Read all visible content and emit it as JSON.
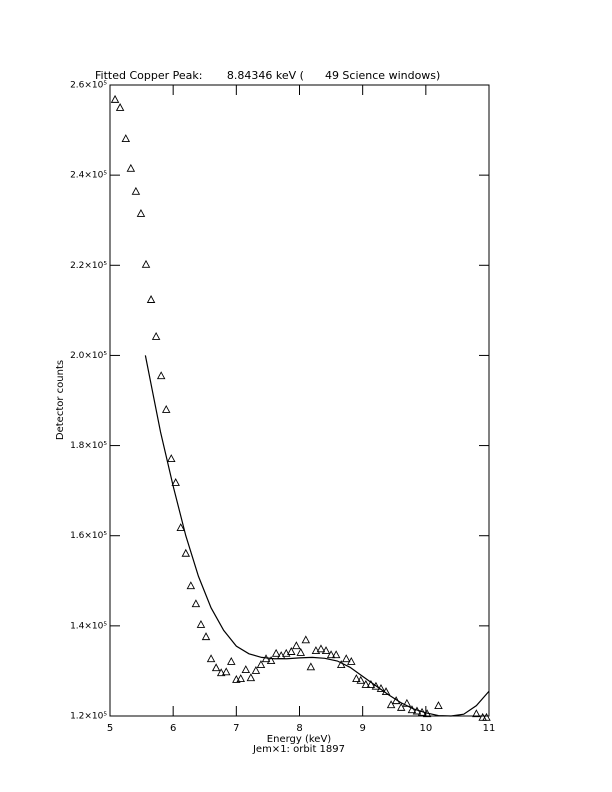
{
  "chart_data": {
    "type": "scatter",
    "title": "Fitted Copper Peak:       8.84346 keV (      49 Science windows)",
    "x_label": "Energy (keV)",
    "y_label": "Detector counts",
    "subtitle": "Jem×1: orbit 1897",
    "xlim": [
      5,
      11
    ],
    "xticks": [
      5,
      6,
      7,
      8,
      9,
      10,
      11
    ],
    "ylim": [
      120000,
      260000
    ],
    "yticks": [
      {
        "value": 120000,
        "label": "1.2×10⁵"
      },
      {
        "value": 140000,
        "label": "1.4×10⁵"
      },
      {
        "value": 160000,
        "label": "1.6×10⁵"
      },
      {
        "value": 180000,
        "label": "1.8×10⁵"
      },
      {
        "value": 200000,
        "label": "2.0×10⁵"
      },
      {
        "value": 220000,
        "label": "2.2×10⁵"
      },
      {
        "value": 240000,
        "label": "2.4×10⁵"
      },
      {
        "value": 260000,
        "label": "2.6×10⁵"
      }
    ],
    "series": [
      {
        "type": "scatter",
        "color": "#000000",
        "x": [
          5.08,
          5.16,
          5.25,
          5.33,
          5.41,
          5.49,
          5.57,
          5.65,
          5.73,
          5.81,
          5.89,
          5.97,
          6.04,
          6.12,
          6.2,
          6.28,
          6.36,
          6.44,
          6.52,
          6.6,
          6.68,
          6.76,
          6.84,
          6.92,
          7.0,
          7.07,
          7.15,
          7.23,
          7.31,
          7.39,
          7.47,
          7.55,
          7.63,
          7.71,
          7.79,
          7.87,
          7.95,
          8.02,
          8.1,
          8.18,
          8.26,
          8.34,
          8.42,
          8.5,
          8.58,
          8.66,
          8.74,
          8.82,
          8.9,
          8.97,
          9.05,
          9.13,
          9.21,
          9.29,
          9.37,
          9.45,
          9.53,
          9.61,
          9.7,
          9.78,
          9.86,
          9.94,
          10.02,
          10.2,
          10.8,
          10.9,
          10.96
        ],
        "values": [
          256700,
          254900,
          248000,
          241400,
          236300,
          231400,
          220100,
          212300,
          204100,
          195400,
          187900,
          177000,
          171700,
          161700,
          156000,
          148800,
          144800,
          140200,
          137500,
          132600,
          130600,
          129500,
          129700,
          132000,
          128000,
          128200,
          130200,
          128400,
          130000,
          131300,
          132600,
          132200,
          133800,
          133300,
          133800,
          134200,
          135500,
          134000,
          136800,
          130800,
          134400,
          134800,
          134400,
          133500,
          133500,
          131300,
          132600,
          132000,
          128200,
          127800,
          126900,
          126900,
          126500,
          126000,
          125300,
          122400,
          123300,
          121800,
          122700,
          121300,
          121000,
          120700,
          120400,
          122200,
          120400,
          119600,
          119600
        ]
      },
      {
        "type": "line",
        "color": "#000000",
        "x": [
          5.56,
          5.8,
          6.0,
          6.2,
          6.4,
          6.6,
          6.8,
          7.0,
          7.2,
          7.4,
          7.6,
          7.8,
          8.0,
          8.2,
          8.4,
          8.6,
          8.8,
          9.0,
          9.2,
          9.4,
          9.6,
          9.8,
          10.0,
          10.2,
          10.4,
          10.6,
          10.8,
          11.0
        ],
        "values": [
          200000,
          183000,
          171000,
          160000,
          151000,
          144000,
          139000,
          135500,
          133800,
          133000,
          132700,
          132700,
          132900,
          133000,
          132800,
          132200,
          130800,
          128800,
          126800,
          124800,
          123000,
          121600,
          120700,
          120100,
          120000,
          120400,
          122300,
          125500
        ]
      }
    ]
  }
}
